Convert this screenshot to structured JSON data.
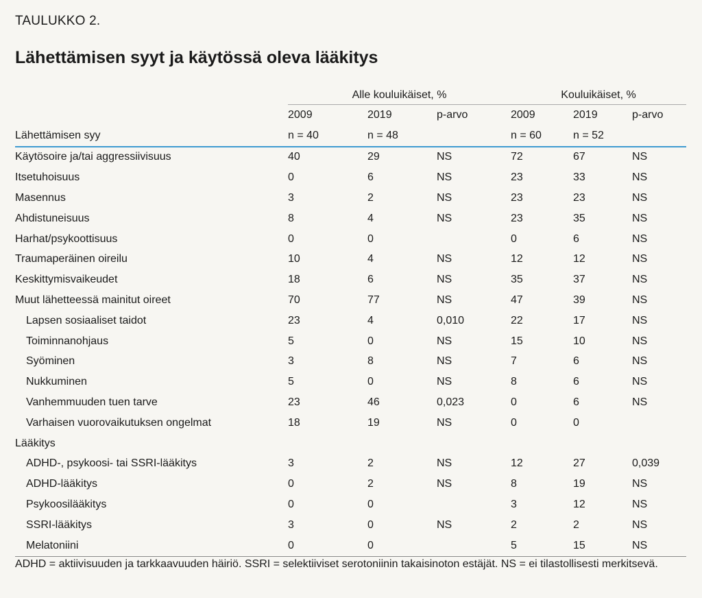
{
  "table_label": "TAULUKKO 2.",
  "title": "Lähettämisen syyt ja käytössä oleva lääkitys",
  "header": {
    "group_preschool": "Alle kouluikäiset, %",
    "group_school": "Kouluikäiset, %",
    "row_label": "Lähettämisen syy",
    "years": [
      "2009",
      "2019",
      "p-arvo",
      "2009",
      "2019",
      "p-arvo"
    ],
    "counts": [
      "n = 40",
      "n = 48",
      "",
      "n = 60",
      "n = 52",
      ""
    ]
  },
  "rows": [
    {
      "label": "Käytösoire ja/tai aggressiivisuus",
      "indent": false,
      "v": [
        "40",
        "29",
        "NS",
        "72",
        "67",
        "NS"
      ]
    },
    {
      "label": "Itsetuhoisuus",
      "indent": false,
      "v": [
        "0",
        "6",
        "NS",
        "23",
        "33",
        "NS"
      ]
    },
    {
      "label": "Masennus",
      "indent": false,
      "v": [
        "3",
        "2",
        "NS",
        "23",
        "23",
        "NS"
      ]
    },
    {
      "label": "Ahdistuneisuus",
      "indent": false,
      "v": [
        "8",
        "4",
        "NS",
        "23",
        "35",
        "NS"
      ]
    },
    {
      "label": "Harhat/psykoottisuus",
      "indent": false,
      "v": [
        "0",
        "0",
        "",
        "0",
        "6",
        "NS"
      ]
    },
    {
      "label": "Traumaperäinen oireilu",
      "indent": false,
      "v": [
        "10",
        "4",
        "NS",
        "12",
        "12",
        "NS"
      ]
    },
    {
      "label": "Keskittymisvaikeudet",
      "indent": false,
      "v": [
        "18",
        "6",
        "NS",
        "35",
        "37",
        "NS"
      ]
    },
    {
      "label": "Muut lähetteessä mainitut oireet",
      "indent": false,
      "v": [
        "70",
        "77",
        "NS",
        "47",
        "39",
        "NS"
      ]
    },
    {
      "label": "Lapsen sosiaaliset taidot",
      "indent": true,
      "v": [
        "23",
        "4",
        "0,010",
        "22",
        "17",
        "NS"
      ]
    },
    {
      "label": "Toiminnanohjaus",
      "indent": true,
      "v": [
        "5",
        "0",
        "NS",
        "15",
        "10",
        "NS"
      ]
    },
    {
      "label": "Syöminen",
      "indent": true,
      "v": [
        "3",
        "8",
        "NS",
        "7",
        "6",
        "NS"
      ]
    },
    {
      "label": "Nukkuminen",
      "indent": true,
      "v": [
        "5",
        "0",
        "NS",
        "8",
        "6",
        "NS"
      ]
    },
    {
      "label": "Vanhemmuuden tuen tarve",
      "indent": true,
      "v": [
        "23",
        "46",
        "0,023",
        "0",
        "6",
        "NS"
      ]
    },
    {
      "label": "Varhaisen vuorovaikutuksen ongelmat",
      "indent": true,
      "v": [
        "18",
        "19",
        "NS",
        "0",
        "0",
        ""
      ]
    },
    {
      "label": "Lääkitys",
      "indent": false,
      "v": [
        "",
        "",
        "",
        "",
        "",
        ""
      ]
    },
    {
      "label": "ADHD-, psykoosi- tai SSRI-lääkitys",
      "indent": true,
      "v": [
        "3",
        "2",
        "NS",
        "12",
        "27",
        "0,039"
      ]
    },
    {
      "label": "ADHD-lääkitys",
      "indent": true,
      "v": [
        "0",
        "2",
        "NS",
        "8",
        "19",
        "NS"
      ]
    },
    {
      "label": "Psykoosilääkitys",
      "indent": true,
      "v": [
        "0",
        "0",
        "",
        "3",
        "12",
        "NS"
      ]
    },
    {
      "label": "SSRI-lääkitys",
      "indent": true,
      "v": [
        "3",
        "0",
        "NS",
        "2",
        "2",
        "NS"
      ]
    },
    {
      "label": "Melatoniini",
      "indent": true,
      "v": [
        "0",
        "0",
        "",
        "5",
        "15",
        "NS"
      ]
    }
  ],
  "footnote": "ADHD = aktiivisuuden ja tarkkaavuuden häiriö. SSRI = selektiiviset serotoniinin takaisinoton estäjät. NS = ei tilastollisesti merkitsevä.",
  "colors": {
    "header_rule": "#3d9bd1",
    "background": "#f7f6f2"
  }
}
